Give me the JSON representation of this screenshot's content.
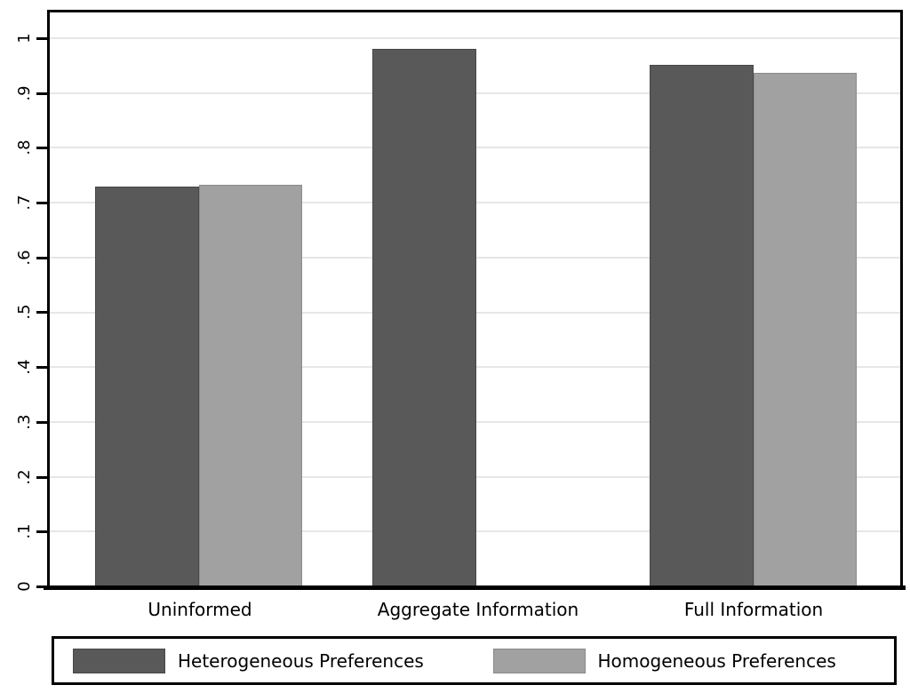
{
  "chart_data": {
    "type": "bar",
    "title": "",
    "categories": [
      "Uninformed",
      "Aggregate Information",
      "Full Information"
    ],
    "series": [
      {
        "name": "Heterogeneous Preferences",
        "color": "#595959",
        "border_color": "#474747",
        "values": [
          0.729,
          0.981,
          0.952
        ]
      },
      {
        "name": "Homogeneous Preferences",
        "color": "#a1a1a1",
        "border_color": "#8a8a8a",
        "values": [
          0.732,
          null,
          0.937
        ]
      }
    ],
    "y_axis": {
      "ticks": [
        0,
        0.1,
        0.2,
        0.3,
        0.4,
        0.5,
        0.6,
        0.7,
        0.8,
        0.9,
        1
      ],
      "tick_labels": [
        "0",
        ".1",
        ".2",
        ".3",
        ".4",
        ".5",
        ".6",
        ".7",
        ".8",
        ".9",
        "1"
      ],
      "range": [
        0,
        1.052
      ],
      "label_rotation_deg": -90
    },
    "x_axis": {
      "label": ""
    },
    "grid": "horizontal",
    "gridline_color": "#e6e6e6",
    "axis_color": "#000000",
    "plot_background": "#ffffff",
    "legend": {
      "position": "bottom",
      "border_color": "#000000"
    }
  }
}
